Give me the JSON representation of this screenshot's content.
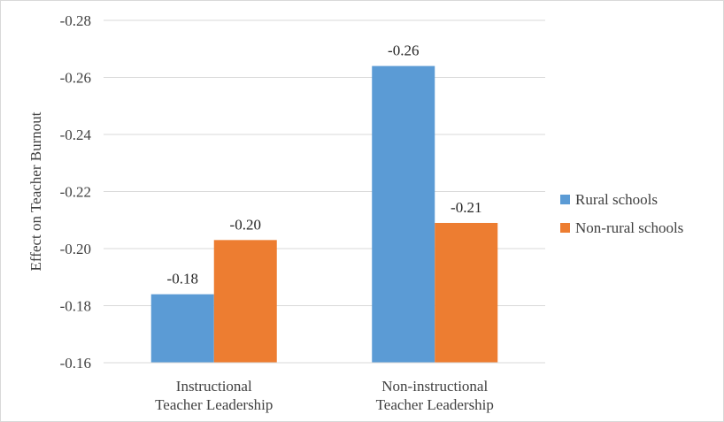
{
  "chart_data": {
    "type": "bar",
    "title": "",
    "xlabel": "",
    "ylabel": "Effect on Teacher Burnout",
    "categories": [
      "Instructional Teacher Leadership",
      "Non-instructional Teacher Leadership"
    ],
    "category_lines": [
      [
        "Instructional",
        "Teacher Leadership"
      ],
      [
        "Non-instructional",
        "Teacher Leadership"
      ]
    ],
    "series": [
      {
        "name": "Rural  schools",
        "color": "#5b9bd5",
        "values": [
          -0.184,
          -0.264
        ],
        "labels": [
          "-0.18",
          "-0.26"
        ]
      },
      {
        "name": "Non-rural schools",
        "color": "#ed7d31",
        "values": [
          -0.203,
          -0.209
        ],
        "labels": [
          "-0.20",
          "-0.21"
        ]
      }
    ],
    "ylim": [
      -0.16,
      -0.28
    ],
    "y_ticks": [
      -0.28,
      -0.26,
      -0.24,
      -0.22,
      -0.2,
      -0.18,
      -0.16
    ],
    "y_tick_labels": [
      "-0.28",
      "-0.26",
      "-0.24",
      "-0.22",
      "-0.20",
      "-0.18",
      "-0.16"
    ],
    "y_axis_reversed": true,
    "grid": true,
    "legend": "right"
  }
}
